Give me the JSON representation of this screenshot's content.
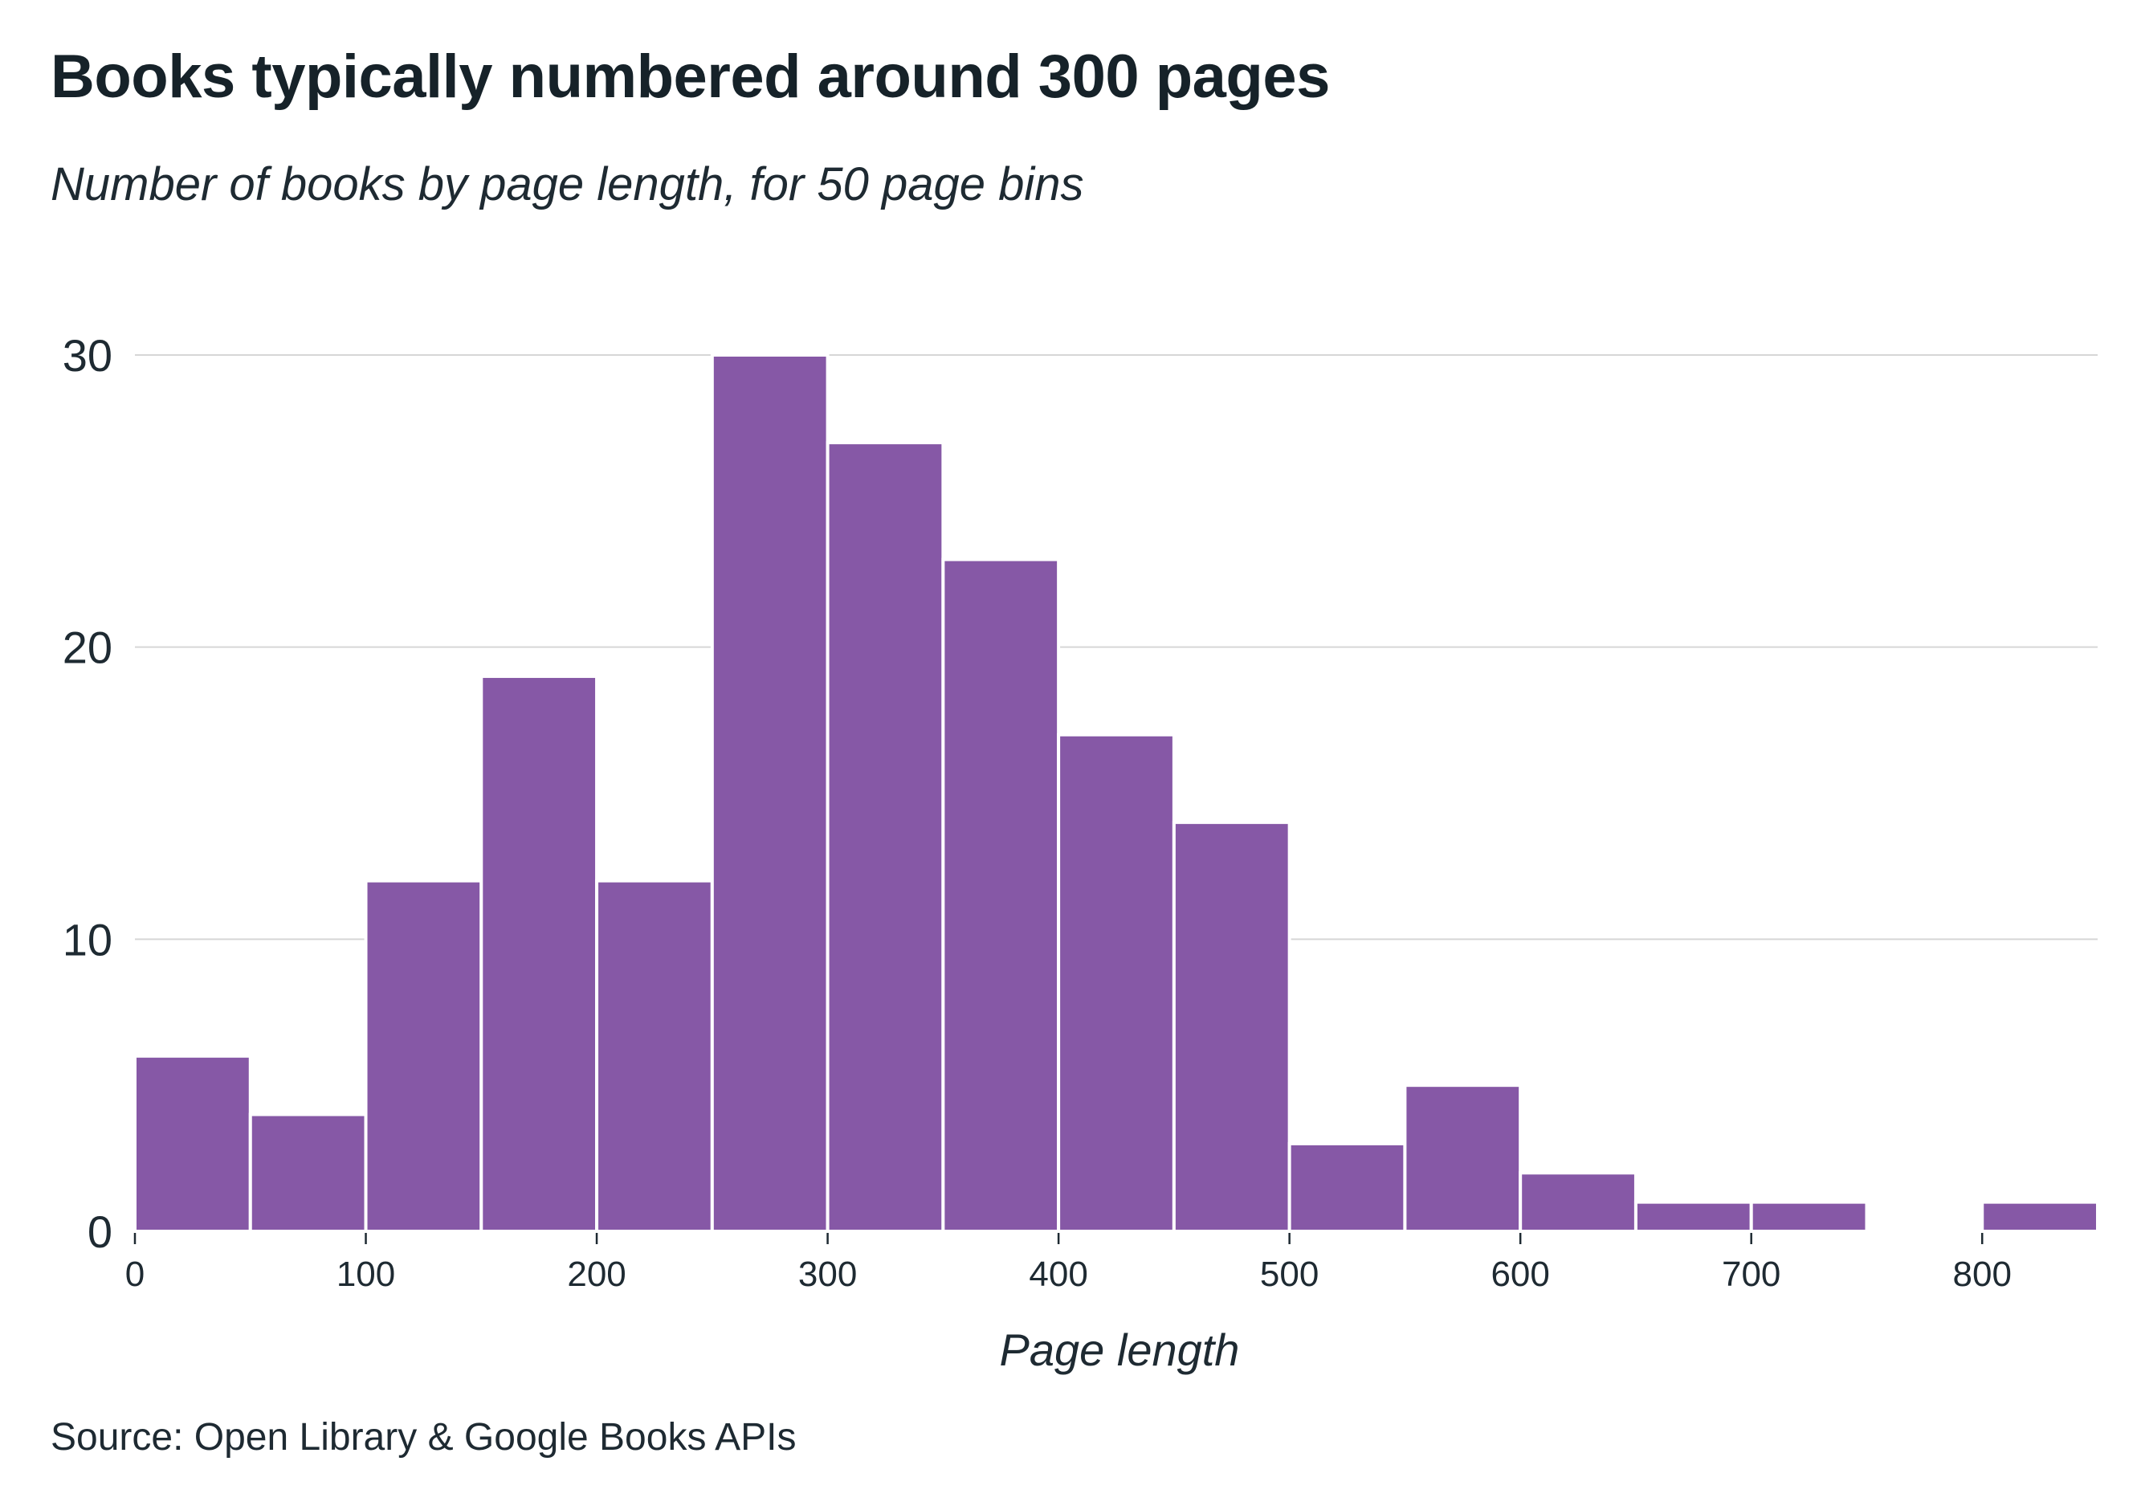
{
  "title": "Books typically numbered around 300 pages",
  "subtitle": "Number of books by page length, for 50 page bins",
  "source": "Source: Open Library & Google Books APIs",
  "colors": {
    "bar": "#8658a6",
    "grid": "#d6d6d6",
    "text": "#1e2a32"
  },
  "chart_data": {
    "type": "bar",
    "title": "Books typically numbered around 300 pages",
    "subtitle": "Number of books by page length, for 50 page bins",
    "xlabel": "Page length",
    "ylabel": "",
    "bin_width": 50,
    "bins": [
      {
        "start": 0,
        "end": 50,
        "count": 6
      },
      {
        "start": 50,
        "end": 100,
        "count": 4
      },
      {
        "start": 100,
        "end": 150,
        "count": 12
      },
      {
        "start": 150,
        "end": 200,
        "count": 19
      },
      {
        "start": 200,
        "end": 250,
        "count": 12
      },
      {
        "start": 250,
        "end": 300,
        "count": 30
      },
      {
        "start": 300,
        "end": 350,
        "count": 27
      },
      {
        "start": 350,
        "end": 400,
        "count": 23
      },
      {
        "start": 400,
        "end": 450,
        "count": 17
      },
      {
        "start": 450,
        "end": 500,
        "count": 14
      },
      {
        "start": 500,
        "end": 550,
        "count": 3
      },
      {
        "start": 550,
        "end": 600,
        "count": 5
      },
      {
        "start": 600,
        "end": 650,
        "count": 2
      },
      {
        "start": 650,
        "end": 700,
        "count": 1
      },
      {
        "start": 700,
        "end": 750,
        "count": 1
      },
      {
        "start": 750,
        "end": 800,
        "count": 0
      },
      {
        "start": 800,
        "end": 850,
        "count": 1
      }
    ],
    "xlim": [
      0,
      850
    ],
    "ylim": [
      0,
      30
    ],
    "xticks": [
      0,
      100,
      200,
      300,
      400,
      500,
      600,
      700,
      800
    ],
    "yticks": [
      0,
      10,
      20,
      30
    ],
    "grid": "horizontal",
    "legend": "none"
  }
}
